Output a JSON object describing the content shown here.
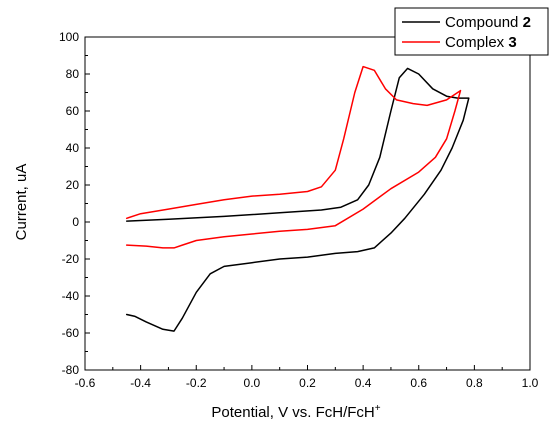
{
  "chart_data": {
    "type": "line",
    "xlabel": "Potential, V vs. FcH/FcH",
    "xlabel_superscript": "+",
    "ylabel": "Current, uA",
    "xlim": [
      -0.6,
      1.0
    ],
    "ylim": [
      -80,
      100
    ],
    "x_ticks": [
      -0.6,
      -0.4,
      -0.2,
      0.0,
      0.2,
      0.4,
      0.6,
      0.8,
      1.0
    ],
    "x_tick_labels": [
      "-0.6",
      "-0.4",
      "-0.2",
      "0.0",
      "0.2",
      "0.4",
      "0.6",
      "0.8",
      "1.0"
    ],
    "y_ticks": [
      -80,
      -60,
      -40,
      -20,
      0,
      20,
      40,
      60,
      80,
      100
    ],
    "y_tick_labels": [
      "-80",
      "-60",
      "-40",
      "-20",
      "0",
      "20",
      "40",
      "60",
      "80",
      "100"
    ],
    "grid": false,
    "legend_position": "top-right",
    "series": [
      {
        "name": "Compound",
        "name_number": "2",
        "color": "#000000",
        "points": [
          [
            -0.45,
            0.5
          ],
          [
            -0.3,
            1.5
          ],
          [
            -0.1,
            3.0
          ],
          [
            0.1,
            5.0
          ],
          [
            0.25,
            6.5
          ],
          [
            0.32,
            8.0
          ],
          [
            0.38,
            12
          ],
          [
            0.42,
            20
          ],
          [
            0.46,
            35
          ],
          [
            0.5,
            60
          ],
          [
            0.53,
            78
          ],
          [
            0.56,
            83
          ],
          [
            0.6,
            80
          ],
          [
            0.65,
            72
          ],
          [
            0.7,
            68
          ],
          [
            0.74,
            67
          ],
          [
            0.78,
            67
          ],
          [
            0.76,
            55
          ],
          [
            0.72,
            40
          ],
          [
            0.68,
            28
          ],
          [
            0.62,
            15
          ],
          [
            0.55,
            2
          ],
          [
            0.5,
            -6
          ],
          [
            0.44,
            -14
          ],
          [
            0.38,
            -16
          ],
          [
            0.3,
            -17
          ],
          [
            0.2,
            -19
          ],
          [
            0.1,
            -20
          ],
          [
            0.0,
            -22
          ],
          [
            -0.1,
            -24
          ],
          [
            -0.15,
            -28
          ],
          [
            -0.2,
            -38
          ],
          [
            -0.25,
            -52
          ],
          [
            -0.28,
            -59
          ],
          [
            -0.32,
            -58
          ],
          [
            -0.38,
            -54
          ],
          [
            -0.42,
            -51
          ],
          [
            -0.45,
            -50
          ]
        ]
      },
      {
        "name": "Complex",
        "name_number": "3",
        "color": "#ff0000",
        "points": [
          [
            -0.45,
            2
          ],
          [
            -0.4,
            4.5
          ],
          [
            -0.3,
            7
          ],
          [
            -0.2,
            9.5
          ],
          [
            -0.1,
            12
          ],
          [
            0.0,
            14
          ],
          [
            0.1,
            15
          ],
          [
            0.2,
            16.5
          ],
          [
            0.25,
            19
          ],
          [
            0.3,
            28
          ],
          [
            0.33,
            45
          ],
          [
            0.37,
            70
          ],
          [
            0.4,
            84
          ],
          [
            0.44,
            82
          ],
          [
            0.48,
            72
          ],
          [
            0.52,
            66
          ],
          [
            0.58,
            64
          ],
          [
            0.63,
            63
          ],
          [
            0.7,
            66
          ],
          [
            0.75,
            71
          ],
          [
            0.73,
            60
          ],
          [
            0.7,
            45
          ],
          [
            0.66,
            35
          ],
          [
            0.6,
            27
          ],
          [
            0.5,
            18
          ],
          [
            0.4,
            7
          ],
          [
            0.3,
            -2
          ],
          [
            0.2,
            -4
          ],
          [
            0.1,
            -5
          ],
          [
            0.0,
            -6.5
          ],
          [
            -0.1,
            -8
          ],
          [
            -0.2,
            -10
          ],
          [
            -0.25,
            -12.5
          ],
          [
            -0.28,
            -14
          ],
          [
            -0.32,
            -14
          ],
          [
            -0.38,
            -13
          ],
          [
            -0.45,
            -12.5
          ]
        ]
      }
    ]
  }
}
